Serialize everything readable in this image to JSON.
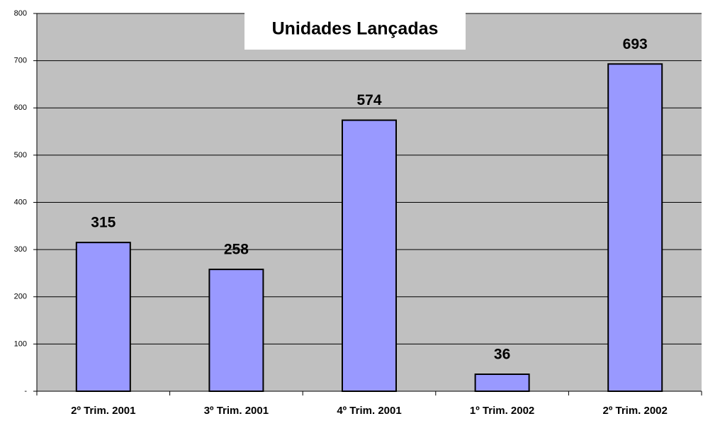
{
  "chart_data": {
    "type": "bar",
    "title": "Unidades Lançadas",
    "categories": [
      "2º Trim. 2001",
      "3º Trim. 2001",
      "4º Trim. 2001",
      "1º Trim. 2002",
      "2º Trim. 2002"
    ],
    "values": [
      315,
      258,
      574,
      36,
      693
    ],
    "color": "#9999ff",
    "ylim": [
      0,
      800
    ],
    "yticks": [
      {
        "value": 0,
        "label": "-"
      },
      100,
      200,
      300,
      400,
      500,
      600,
      700,
      800
    ],
    "grid": true
  }
}
